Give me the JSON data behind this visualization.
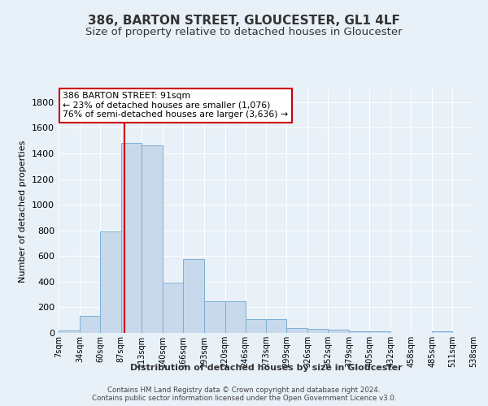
{
  "title": "386, BARTON STREET, GLOUCESTER, GL1 4LF",
  "subtitle": "Size of property relative to detached houses in Gloucester",
  "xlabel": "Distribution of detached houses by size in Gloucester",
  "ylabel": "Number of detached properties",
  "footer_line1": "Contains HM Land Registry data © Crown copyright and database right 2024.",
  "footer_line2": "Contains public sector information licensed under the Open Government Licence v3.0.",
  "bin_edges": [
    7,
    34,
    60,
    87,
    113,
    140,
    166,
    193,
    220,
    246,
    273,
    299,
    326,
    352,
    379,
    405,
    432,
    458,
    485,
    511,
    538
  ],
  "bar_heights": [
    20,
    130,
    790,
    1480,
    1460,
    390,
    575,
    245,
    245,
    110,
    110,
    40,
    30,
    25,
    15,
    15,
    0,
    0,
    15,
    0
  ],
  "bar_color": "#c8d9ec",
  "bar_edge_color": "#7bafd4",
  "property_size": 91,
  "property_line_color": "#cc0000",
  "annotation_line1": "386 BARTON STREET: 91sqm",
  "annotation_line2": "← 23% of detached houses are smaller (1,076)",
  "annotation_line3": "76% of semi-detached houses are larger (3,636) →",
  "annotation_box_color": "#ffffff",
  "annotation_box_edge_color": "#cc0000",
  "ylim": [
    0,
    1900
  ],
  "yticks": [
    0,
    200,
    400,
    600,
    800,
    1000,
    1200,
    1400,
    1600,
    1800
  ],
  "background_color": "#e8f0f8",
  "grid_color": "#ffffff",
  "title_fontsize": 11,
  "subtitle_fontsize": 9.5,
  "ylabel_fontsize": 8,
  "ytick_fontsize": 8,
  "xtick_fontsize": 7,
  "xlabel_fontsize": 8,
  "annotation_fontsize": 7.8,
  "footer_fontsize": 6.2
}
